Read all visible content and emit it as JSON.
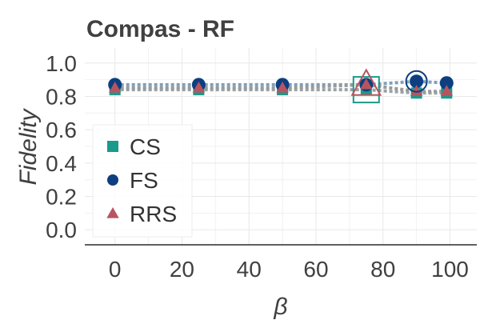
{
  "chart_data": {
    "type": "line",
    "title": "Compas - RF",
    "xlabel": "β",
    "ylabel": "Fidelity",
    "xlim": [
      -9,
      108
    ],
    "ylim": [
      -0.09,
      1.09
    ],
    "xticks": [
      0,
      20,
      40,
      60,
      80,
      100
    ],
    "yticks": [
      0.0,
      0.2,
      0.4,
      0.6,
      0.8,
      1.0
    ],
    "xtick_labels": [
      "0",
      "20",
      "40",
      "60",
      "80",
      "100"
    ],
    "ytick_labels": [
      "0.0",
      "0.2",
      "0.4",
      "0.6",
      "0.8",
      "1.0"
    ],
    "grid": true,
    "legend_position": "center-left",
    "series": [
      {
        "name": "CS",
        "marker": "square",
        "color": "#1a9a8a",
        "line_color": "#9aa3a6",
        "x": [
          0,
          25,
          50,
          75,
          90,
          99
        ],
        "y": [
          0.84,
          0.84,
          0.84,
          0.84,
          0.82,
          0.82
        ],
        "highlight": {
          "x": 75,
          "y": 0.84
        }
      },
      {
        "name": "FS",
        "marker": "circle",
        "color": "#0d3f80",
        "line_color": "#7f9fbf",
        "x": [
          0,
          25,
          50,
          75,
          90,
          99
        ],
        "y": [
          0.87,
          0.87,
          0.87,
          0.87,
          0.89,
          0.88
        ],
        "highlight": {
          "x": 90,
          "y": 0.89
        }
      },
      {
        "name": "RRS",
        "marker": "triangle",
        "color": "#b85460",
        "line_color": "#9a9a9a",
        "x": [
          0,
          25,
          50,
          75,
          90,
          99
        ],
        "y": [
          0.85,
          0.85,
          0.85,
          0.87,
          0.83,
          0.83
        ],
        "highlight": {
          "x": 75,
          "y": 0.87
        }
      }
    ]
  }
}
